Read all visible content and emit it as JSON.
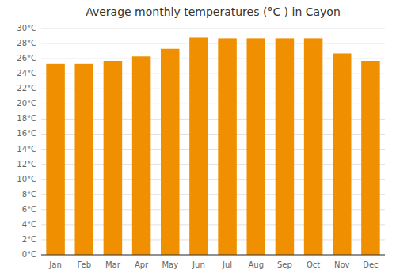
{
  "chart_data": {
    "type": "bar",
    "title": "Average monthly temperatures (°C ) in Cayon",
    "categories": [
      "Jan",
      "Feb",
      "Mar",
      "Apr",
      "May",
      "Jun",
      "Jul",
      "Aug",
      "Sep",
      "Oct",
      "Nov",
      "Dec"
    ],
    "values": [
      25.3,
      25.3,
      25.7,
      26.3,
      27.3,
      28.8,
      28.7,
      28.7,
      28.7,
      28.7,
      26.7,
      25.7
    ],
    "color": "#F09000",
    "ylim": [
      0,
      30
    ],
    "yticks": [
      {
        "value": 0,
        "label": "0°C"
      },
      {
        "value": 2,
        "label": "2°C"
      },
      {
        "value": 4,
        "label": "4°C"
      },
      {
        "value": 6,
        "label": "6°C"
      },
      {
        "value": 8,
        "label": "8°C"
      },
      {
        "value": 10,
        "label": "10°C"
      },
      {
        "value": 12,
        "label": "12°C"
      },
      {
        "value": 14,
        "label": "14°C"
      },
      {
        "value": 16,
        "label": "16°C"
      },
      {
        "value": 18,
        "label": "18°C"
      },
      {
        "value": 20,
        "label": "20°C"
      },
      {
        "value": 22,
        "label": "22°C"
      },
      {
        "value": 24,
        "label": "24°C"
      },
      {
        "value": 26,
        "label": "26°C"
      },
      {
        "value": 28,
        "label": "28°C"
      },
      {
        "value": 30,
        "label": "30°C"
      }
    ],
    "grid": true
  }
}
